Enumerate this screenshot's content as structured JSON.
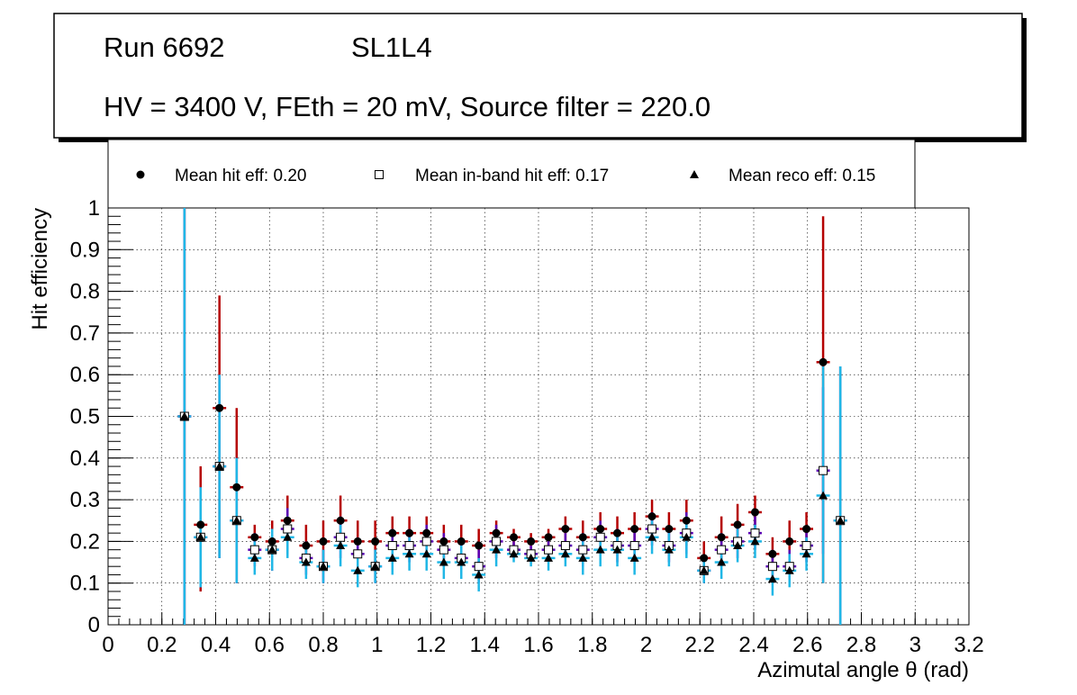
{
  "header": {
    "run_label": "Run 6692",
    "layer_label": "SL1L4",
    "conditions": "HV = 3400 V, FEth = 20 mV, Source filter = 220.0"
  },
  "legend": {
    "entries": [
      {
        "label": "Mean hit  eff: 0.20",
        "marker": "filled-circle"
      },
      {
        "label": "Mean in-band hit eff: 0.17",
        "marker": "open-square"
      },
      {
        "label": "Mean reco eff: 0.15",
        "marker": "filled-triangle"
      }
    ]
  },
  "colors": {
    "hit_err": "#b50000",
    "inband_err": "#5a00b4",
    "reco_err": "#20b7e6",
    "marker": "#000000",
    "grid": "#000000"
  },
  "chart_data": {
    "type": "scatter",
    "title": "",
    "xlabel": "Azimutal angle θ (rad)",
    "ylabel": "Hit efficiency",
    "xlim": [
      0,
      3.2
    ],
    "ylim": [
      0,
      1
    ],
    "grid": true,
    "legend_placement": "top",
    "x_ticks": [
      "0",
      "0.2",
      "0.4",
      "0.6",
      "0.8",
      "1",
      "1.2",
      "1.4",
      "1.6",
      "1.8",
      "2",
      "2.2",
      "2.4",
      "2.6",
      "2.8",
      "3",
      "3.2"
    ],
    "y_ticks": [
      "0",
      "0.1",
      "0.2",
      "0.3",
      "0.4",
      "0.5",
      "0.6",
      "0.7",
      "0.8",
      "0.9",
      "1"
    ],
    "x_halfwidth": 0.025,
    "x": [
      0.284,
      0.344,
      0.414,
      0.478,
      0.545,
      0.61,
      0.667,
      0.736,
      0.8,
      0.864,
      0.928,
      0.993,
      1.057,
      1.12,
      1.184,
      1.248,
      1.313,
      1.378,
      1.443,
      1.508,
      1.572,
      1.637,
      1.7,
      1.765,
      1.83,
      1.893,
      1.957,
      2.022,
      2.085,
      2.15,
      2.215,
      2.28,
      2.34,
      2.405,
      2.47,
      2.533,
      2.596,
      2.658,
      2.722
    ],
    "series": [
      {
        "name": "Mean hit  eff: 0.20",
        "marker": "filled-circle",
        "values": [
          0.5,
          0.24,
          0.52,
          0.33,
          0.21,
          0.2,
          0.25,
          0.19,
          0.2,
          0.25,
          0.2,
          0.2,
          0.22,
          0.22,
          0.22,
          0.2,
          0.2,
          0.19,
          0.22,
          0.21,
          0.2,
          0.21,
          0.23,
          0.21,
          0.23,
          0.22,
          0.23,
          0.26,
          0.23,
          0.25,
          0.16,
          0.21,
          0.24,
          0.27,
          0.17,
          0.2,
          0.23,
          0.63,
          0.25
        ],
        "err_low": [
          0.5,
          0.16,
          0.36,
          0.23,
          0.07,
          0.07,
          0.08,
          0.05,
          0.05,
          0.06,
          0.07,
          0.05,
          0.05,
          0.05,
          0.05,
          0.05,
          0.05,
          0.05,
          0.05,
          0.02,
          0.02,
          0.03,
          0.04,
          0.05,
          0.05,
          0.05,
          0.05,
          0.06,
          0.05,
          0.06,
          0.03,
          0.05,
          0.05,
          0.05,
          0.04,
          0.05,
          0.05,
          0.53,
          0.25
        ],
        "err_high": [
          0.5,
          0.14,
          0.27,
          0.19,
          0.03,
          0.05,
          0.06,
          0.05,
          0.05,
          0.06,
          0.05,
          0.05,
          0.04,
          0.04,
          0.04,
          0.04,
          0.04,
          0.04,
          0.03,
          0.02,
          0.02,
          0.02,
          0.03,
          0.04,
          0.04,
          0.04,
          0.04,
          0.04,
          0.04,
          0.05,
          0.04,
          0.05,
          0.05,
          0.04,
          0.04,
          0.05,
          0.04,
          0.35,
          0.37
        ]
      },
      {
        "name": "Mean in-band hit eff: 0.17",
        "marker": "open-square",
        "values": [
          0.5,
          0.21,
          0.38,
          0.25,
          0.18,
          0.18,
          0.23,
          0.16,
          0.14,
          0.21,
          0.17,
          0.14,
          0.19,
          0.19,
          0.2,
          0.18,
          0.16,
          0.14,
          0.2,
          0.18,
          0.17,
          0.18,
          0.19,
          0.18,
          0.21,
          0.19,
          0.19,
          0.23,
          0.19,
          0.22,
          0.13,
          0.18,
          0.2,
          0.22,
          0.14,
          0.14,
          0.19,
          0.37,
          0.25
        ],
        "err_low": [
          0.5,
          0.12,
          0.22,
          0.15,
          0.04,
          0.05,
          0.05,
          0.04,
          0.04,
          0.05,
          0.04,
          0.04,
          0.04,
          0.04,
          0.04,
          0.04,
          0.04,
          0.04,
          0.04,
          0.02,
          0.02,
          0.03,
          0.03,
          0.04,
          0.04,
          0.04,
          0.04,
          0.04,
          0.04,
          0.05,
          0.03,
          0.04,
          0.04,
          0.04,
          0.04,
          0.04,
          0.04,
          0.2,
          0.25
        ],
        "err_high": [
          0.5,
          0.12,
          0.22,
          0.15,
          0.04,
          0.05,
          0.05,
          0.04,
          0.04,
          0.05,
          0.04,
          0.04,
          0.04,
          0.04,
          0.04,
          0.04,
          0.04,
          0.04,
          0.04,
          0.02,
          0.02,
          0.03,
          0.03,
          0.04,
          0.04,
          0.04,
          0.04,
          0.04,
          0.04,
          0.05,
          0.03,
          0.04,
          0.04,
          0.04,
          0.04,
          0.04,
          0.04,
          0.2,
          0.37
        ]
      },
      {
        "name": "Mean reco eff: 0.15",
        "marker": "filled-triangle",
        "values": [
          0.5,
          0.21,
          0.38,
          0.25,
          0.16,
          0.18,
          0.21,
          0.15,
          0.14,
          0.19,
          0.13,
          0.14,
          0.16,
          0.17,
          0.17,
          0.15,
          0.15,
          0.12,
          0.18,
          0.17,
          0.16,
          0.16,
          0.17,
          0.16,
          0.18,
          0.18,
          0.16,
          0.21,
          0.18,
          0.21,
          0.13,
          0.15,
          0.19,
          0.2,
          0.11,
          0.13,
          0.17,
          0.31,
          0.25
        ],
        "err_low": [
          0.5,
          0.12,
          0.22,
          0.15,
          0.04,
          0.05,
          0.05,
          0.04,
          0.04,
          0.05,
          0.04,
          0.04,
          0.04,
          0.04,
          0.04,
          0.04,
          0.04,
          0.04,
          0.04,
          0.02,
          0.02,
          0.03,
          0.03,
          0.04,
          0.04,
          0.04,
          0.04,
          0.04,
          0.04,
          0.05,
          0.03,
          0.04,
          0.04,
          0.04,
          0.04,
          0.04,
          0.04,
          0.21,
          0.25
        ],
        "err_high": [
          0.5,
          0.12,
          0.22,
          0.15,
          0.04,
          0.05,
          0.05,
          0.04,
          0.04,
          0.05,
          0.04,
          0.04,
          0.04,
          0.04,
          0.04,
          0.04,
          0.04,
          0.04,
          0.04,
          0.02,
          0.02,
          0.03,
          0.03,
          0.04,
          0.04,
          0.04,
          0.04,
          0.04,
          0.04,
          0.05,
          0.03,
          0.04,
          0.04,
          0.04,
          0.04,
          0.04,
          0.04,
          0.31,
          0.37
        ]
      }
    ]
  }
}
